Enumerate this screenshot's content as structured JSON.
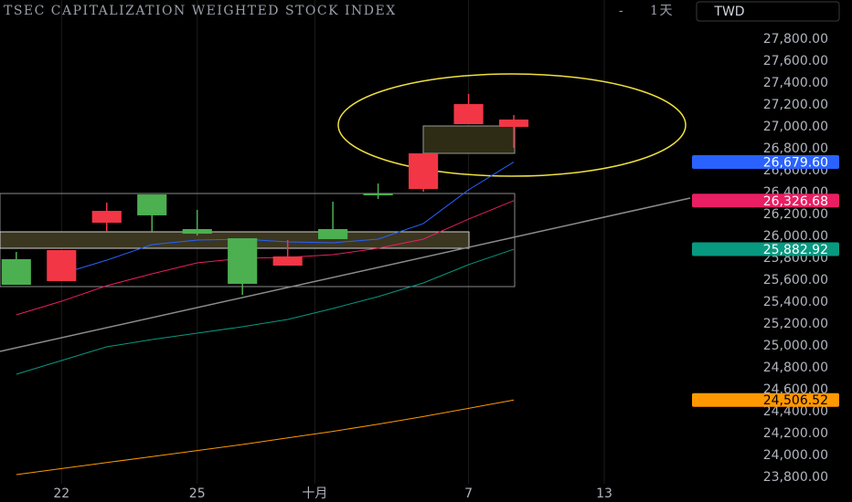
{
  "chart_data": {
    "type": "candlestick",
    "title": "TSEC CAPITALIZATION WEIGHTED STOCK INDEX",
    "separator": "-",
    "interval": "1天",
    "currency": "TWD",
    "x": [
      0,
      1,
      2,
      3,
      4,
      5,
      6,
      7,
      8,
      9,
      10,
      11
    ],
    "open": [
      25558,
      25875,
      26233,
      26192,
      26025,
      25567,
      25817,
      25975,
      26375,
      26758,
      27208,
      27067
    ],
    "high": [
      25858,
      25875,
      26308,
      26383,
      26242,
      25983,
      25967,
      26317,
      26483,
      26758,
      27300,
      27108
    ],
    "low": [
      25558,
      25592,
      26042,
      26042,
      26008,
      25467,
      25733,
      25975,
      26342,
      26408,
      27025,
      26808
    ],
    "close": [
      25792,
      25592,
      26125,
      26383,
      26067,
      25983,
      25733,
      26067,
      26392,
      26433,
      27025,
      27000
    ],
    "up_color": "#4caf50",
    "down_color": "#f23645",
    "overlays": [
      {
        "color": "#2962ff",
        "text_color": "#ffffff",
        "values": [
          null,
          25658,
          25783,
          25925,
          25967,
          25975,
          25950,
          25942,
          25975,
          26117,
          26425,
          26679.6
        ],
        "value_labels": [
          null,
          null,
          null,
          null,
          null,
          null,
          null,
          null,
          null,
          null,
          null,
          "26,679.60"
        ]
      },
      {
        "color": "#e91e63",
        "text_color": "#ffffff",
        "values": [
          25283,
          25408,
          25550,
          25658,
          25758,
          25800,
          25808,
          25833,
          25892,
          25975,
          26158,
          26326.68
        ],
        "value_labels": [
          null,
          null,
          null,
          null,
          null,
          null,
          null,
          null,
          null,
          null,
          null,
          "26,326.68"
        ]
      },
      {
        "color": "#089981",
        "text_color": "#ffffff",
        "values": [
          24742,
          24867,
          24992,
          25058,
          25117,
          25175,
          25242,
          25342,
          25450,
          25575,
          25742,
          25882.92
        ],
        "value_labels": [
          null,
          null,
          null,
          null,
          null,
          null,
          null,
          null,
          null,
          null,
          null,
          "25,882.92"
        ]
      },
      {
        "color": "#ff9800",
        "text_color": "#000000",
        "values": [
          23825,
          23880,
          23935,
          23990,
          24045,
          24100,
          24160,
          24220,
          24285,
          24355,
          24430,
          24506.52
        ],
        "value_labels": [
          null,
          null,
          null,
          null,
          null,
          null,
          null,
          null,
          null,
          null,
          null,
          "24,506.52"
        ]
      }
    ],
    "xlim": [
      -0.36,
      14.9
    ],
    "xticks": [
      {
        "value": 1,
        "label": "22"
      },
      {
        "value": 4,
        "label": "25"
      },
      {
        "value": 6.6,
        "label": "十月"
      },
      {
        "value": 10,
        "label": "7"
      },
      {
        "value": 13,
        "label": "13"
      }
    ],
    "ylim": [
      23750,
      28150
    ],
    "yticks": [
      {
        "value": 23800,
        "label": "23,800.00"
      },
      {
        "value": 24000,
        "label": "24,000.00"
      },
      {
        "value": 24200,
        "label": "24,200.00"
      },
      {
        "value": 24400,
        "label": "24,400.00"
      },
      {
        "value": 24600,
        "label": "24,600.00"
      },
      {
        "value": 24800,
        "label": "24,800.00"
      },
      {
        "value": 25000,
        "label": "25,000.00"
      },
      {
        "value": 25200,
        "label": "25,200.00"
      },
      {
        "value": 25400,
        "label": "25,400.00"
      },
      {
        "value": 25600,
        "label": "25,600.00"
      },
      {
        "value": 25800,
        "label": "25,800.00"
      },
      {
        "value": 26000,
        "label": "26,000.00"
      },
      {
        "value": 26200,
        "label": "26,200.00"
      },
      {
        "value": 26400,
        "label": "26,400.00"
      },
      {
        "value": 26600,
        "label": "26,600.00"
      },
      {
        "value": 26800,
        "label": "26,800.00"
      },
      {
        "value": 27000,
        "label": "27,000.00"
      },
      {
        "value": 27200,
        "label": "27,200.00"
      },
      {
        "value": 27400,
        "label": "27,400.00"
      },
      {
        "value": 27600,
        "label": "27,600.00"
      },
      {
        "value": 27800,
        "label": "27,800.00"
      }
    ],
    "grid": "x"
  }
}
